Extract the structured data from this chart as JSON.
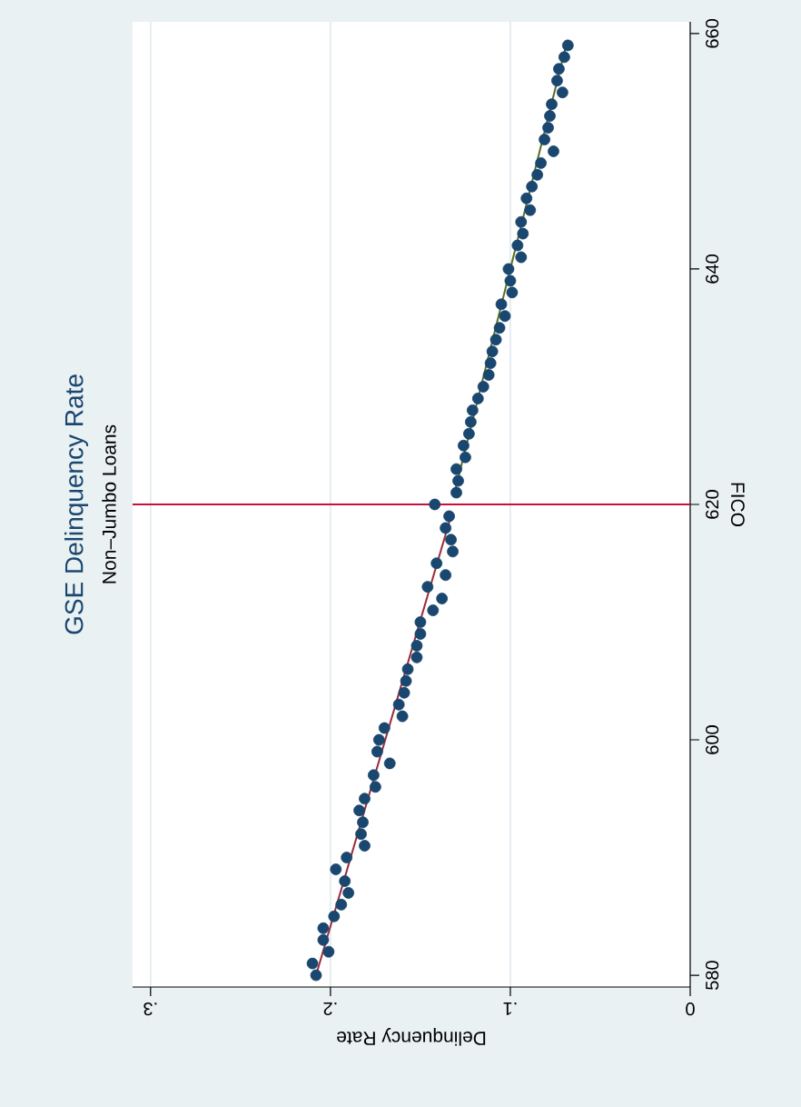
{
  "chart_data": {
    "type": "scatter",
    "title": "GSE Delinquency Rate",
    "subtitle": "Non–Jumbo Loans",
    "xlabel": "Delinquency Rate",
    "ylabel": "FICO",
    "xlim": [
      0.31,
      0
    ],
    "ylim": [
      579,
      661
    ],
    "xticks": [
      0,
      {
        "value": 0.1,
        "label": ".1"
      },
      {
        "value": 0.2,
        "label": ".2"
      },
      {
        "value": 0.3,
        "label": ".3"
      }
    ],
    "yticks": [
      580,
      600,
      620,
      640,
      660
    ],
    "grid": "x",
    "series": [
      {
        "color": "#1a476f",
        "marker": "circle",
        "x": [
          0.208,
          0.21,
          0.201,
          0.204,
          0.204,
          0.198,
          0.194,
          0.19,
          0.192,
          0.197,
          0.191,
          0.181,
          0.183,
          0.182,
          0.184,
          0.181,
          0.175,
          0.176,
          0.167,
          0.174,
          0.173,
          0.17,
          0.16,
          0.162,
          0.159,
          0.158,
          0.157,
          0.152,
          0.152,
          0.15,
          0.15,
          0.143,
          0.138,
          0.146,
          0.136,
          0.141,
          0.132,
          0.133,
          0.136,
          0.134,
          0.142,
          0.13,
          0.129,
          0.13,
          0.125,
          0.126,
          0.123,
          0.122,
          0.121,
          0.118,
          0.115,
          0.112,
          0.111,
          0.11,
          0.108,
          0.106,
          0.103,
          0.105,
          0.099,
          0.1,
          0.101,
          0.094,
          0.096,
          0.093,
          0.094,
          0.089,
          0.091,
          0.088,
          0.085,
          0.083,
          0.076,
          0.081,
          0.079,
          0.078,
          0.077,
          0.071,
          0.074,
          0.073,
          0.07,
          0.068
        ],
        "values": [
          580,
          581,
          582,
          583,
          584,
          585,
          586,
          587,
          588,
          589,
          590,
          591,
          592,
          593,
          594,
          595,
          596,
          597,
          598,
          599,
          600,
          601,
          602,
          603,
          604,
          605,
          606,
          607,
          608,
          609,
          610,
          611,
          612,
          613,
          614,
          615,
          616,
          617,
          618,
          619,
          620,
          621,
          622,
          623,
          624,
          625,
          626,
          627,
          628,
          629,
          630,
          631,
          632,
          633,
          634,
          635,
          636,
          637,
          638,
          639,
          640,
          641,
          642,
          643,
          644,
          645,
          646,
          647,
          648,
          649,
          650,
          651,
          652,
          653,
          654,
          655,
          656,
          657,
          658,
          659
        ]
      },
      {
        "type": "line",
        "marker": "none",
        "color": "#9c2a3a",
        "x": [
          0.208,
          0.133
        ],
        "values": [
          580,
          619
        ]
      },
      {
        "type": "line",
        "marker": "none",
        "color": "#5a6e1e",
        "x": [
          0.131,
          0.069
        ],
        "values": [
          621,
          659
        ]
      }
    ],
    "ref_lines": [
      {
        "axis": "y",
        "value": 620,
        "color": "#c8103a"
      }
    ]
  }
}
